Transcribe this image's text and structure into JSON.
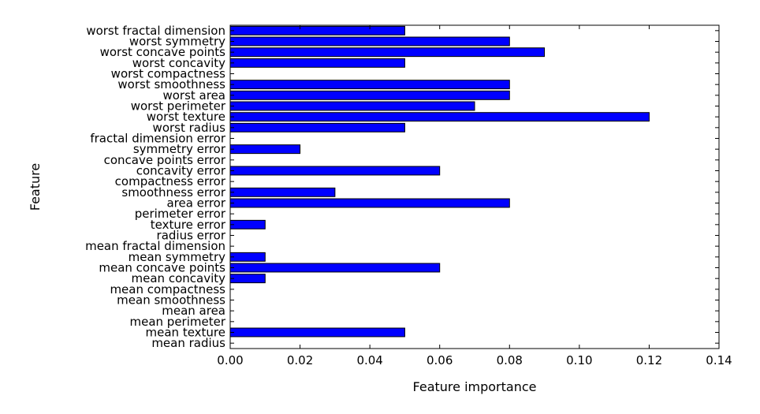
{
  "chart_data": {
    "type": "bar",
    "orientation": "horizontal",
    "xlabel": "Feature importance",
    "ylabel": "Feature",
    "xlim": [
      0,
      0.14
    ],
    "xticks": [
      "0.00",
      "0.02",
      "0.04",
      "0.06",
      "0.08",
      "0.10",
      "0.12",
      "0.14"
    ],
    "bar_color": "#0000ff",
    "grid": false,
    "categories": [
      "mean radius",
      "mean texture",
      "mean perimeter",
      "mean area",
      "mean smoothness",
      "mean compactness",
      "mean concavity",
      "mean concave points",
      "mean symmetry",
      "mean fractal dimension",
      "radius error",
      "texture error",
      "perimeter error",
      "area error",
      "smoothness error",
      "compactness error",
      "concavity error",
      "concave points error",
      "symmetry error",
      "fractal dimension error",
      "worst radius",
      "worst texture",
      "worst perimeter",
      "worst area",
      "worst smoothness",
      "worst compactness",
      "worst concavity",
      "worst concave points",
      "worst symmetry",
      "worst fractal dimension"
    ],
    "values": [
      0.0,
      0.05,
      0.0,
      0.0,
      0.0,
      0.0,
      0.01,
      0.06,
      0.01,
      0.0,
      0.0,
      0.01,
      0.0,
      0.08,
      0.03,
      0.0,
      0.06,
      0.0,
      0.02,
      0.0,
      0.05,
      0.12,
      0.07,
      0.08,
      0.08,
      0.0,
      0.05,
      0.09,
      0.08,
      0.05
    ]
  }
}
